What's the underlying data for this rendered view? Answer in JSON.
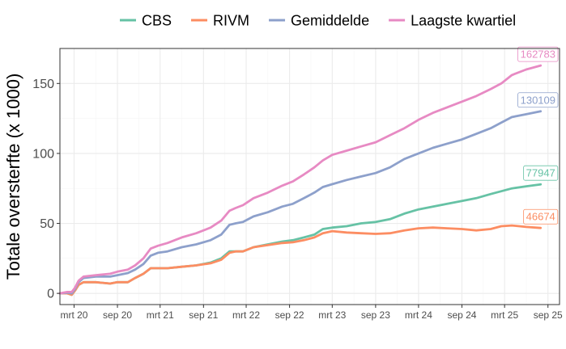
{
  "chart_data": {
    "type": "line",
    "title": "",
    "xlabel": "",
    "ylabel": "Totale oversterfte (x 1000)",
    "ylim": [
      -8,
      175
    ],
    "xlim": [
      "2020-01-01",
      "2025-10-20"
    ],
    "grid": true,
    "legend_position": "top",
    "y_ticks": [
      0,
      50,
      100,
      150
    ],
    "x_ticks": [
      {
        "date": "2020-03-01",
        "label": "mrt 20"
      },
      {
        "date": "2020-09-01",
        "label": "sep 20"
      },
      {
        "date": "2021-03-01",
        "label": "mrt 21"
      },
      {
        "date": "2021-09-01",
        "label": "sep 21"
      },
      {
        "date": "2022-03-01",
        "label": "mrt 22"
      },
      {
        "date": "2022-09-01",
        "label": "sep 22"
      },
      {
        "date": "2023-03-01",
        "label": "mrt 23"
      },
      {
        "date": "2023-09-01",
        "label": "sep 23"
      },
      {
        "date": "2024-03-01",
        "label": "mrt 24"
      },
      {
        "date": "2024-09-01",
        "label": "sep 24"
      },
      {
        "date": "2025-03-01",
        "label": "mrt 25"
      },
      {
        "date": "2025-09-01",
        "label": "sep 25"
      }
    ],
    "series": [
      {
        "name": "CBS",
        "color": "#66c2a5",
        "end_label": "77947",
        "points": [
          [
            "2020-01-01",
            0
          ],
          [
            "2020-02-01",
            0
          ],
          [
            "2020-02-20",
            -1
          ],
          [
            "2020-03-05",
            2
          ],
          [
            "2020-03-20",
            6
          ],
          [
            "2020-04-10",
            8
          ],
          [
            "2020-06-01",
            8
          ],
          [
            "2020-08-01",
            7
          ],
          [
            "2020-09-01",
            8
          ],
          [
            "2020-10-15",
            8
          ],
          [
            "2020-11-15",
            11
          ],
          [
            "2020-12-20",
            14
          ],
          [
            "2021-01-20",
            18
          ],
          [
            "2021-02-20",
            18
          ],
          [
            "2021-04-01",
            18
          ],
          [
            "2021-06-01",
            19
          ],
          [
            "2021-08-01",
            20
          ],
          [
            "2021-10-01",
            22
          ],
          [
            "2021-11-15",
            25
          ],
          [
            "2021-12-20",
            30
          ],
          [
            "2022-01-15",
            30
          ],
          [
            "2022-02-15",
            30
          ],
          [
            "2022-04-01",
            33
          ],
          [
            "2022-06-01",
            35
          ],
          [
            "2022-08-01",
            37
          ],
          [
            "2022-09-15",
            38
          ],
          [
            "2022-11-01",
            40
          ],
          [
            "2022-12-15",
            42
          ],
          [
            "2023-01-20",
            46
          ],
          [
            "2023-03-01",
            47
          ],
          [
            "2023-05-01",
            48
          ],
          [
            "2023-07-01",
            50
          ],
          [
            "2023-09-01",
            51
          ],
          [
            "2023-11-01",
            53
          ],
          [
            "2024-01-01",
            57
          ],
          [
            "2024-03-01",
            60
          ],
          [
            "2024-05-01",
            62
          ],
          [
            "2024-07-01",
            64
          ],
          [
            "2024-09-01",
            66
          ],
          [
            "2024-11-01",
            68
          ],
          [
            "2025-01-01",
            71
          ],
          [
            "2025-02-15",
            73
          ],
          [
            "2025-04-01",
            75
          ],
          [
            "2025-06-01",
            76.5
          ],
          [
            "2025-08-01",
            77.9
          ]
        ]
      },
      {
        "name": "RIVM",
        "color": "#fc8d62",
        "end_label": "46674",
        "points": [
          [
            "2020-01-01",
            0
          ],
          [
            "2020-02-01",
            0
          ],
          [
            "2020-02-20",
            -1
          ],
          [
            "2020-03-05",
            2
          ],
          [
            "2020-03-20",
            6
          ],
          [
            "2020-04-10",
            8
          ],
          [
            "2020-06-01",
            8
          ],
          [
            "2020-08-01",
            7
          ],
          [
            "2020-09-01",
            8
          ],
          [
            "2020-10-15",
            8
          ],
          [
            "2020-11-15",
            11
          ],
          [
            "2020-12-20",
            14
          ],
          [
            "2021-01-20",
            18
          ],
          [
            "2021-02-20",
            18
          ],
          [
            "2021-04-01",
            18
          ],
          [
            "2021-06-01",
            19
          ],
          [
            "2021-08-01",
            20
          ],
          [
            "2021-10-01",
            21.5
          ],
          [
            "2021-11-15",
            24
          ],
          [
            "2021-12-20",
            29
          ],
          [
            "2022-01-15",
            30
          ],
          [
            "2022-02-15",
            30
          ],
          [
            "2022-04-01",
            33
          ],
          [
            "2022-06-01",
            34.5
          ],
          [
            "2022-08-01",
            36
          ],
          [
            "2022-09-15",
            36.5
          ],
          [
            "2022-11-01",
            38
          ],
          [
            "2022-12-15",
            40
          ],
          [
            "2023-01-20",
            43
          ],
          [
            "2023-03-01",
            44.5
          ],
          [
            "2023-05-01",
            43.5
          ],
          [
            "2023-07-01",
            43
          ],
          [
            "2023-09-01",
            42.5
          ],
          [
            "2023-11-01",
            43
          ],
          [
            "2024-01-01",
            45
          ],
          [
            "2024-03-01",
            46.5
          ],
          [
            "2024-05-01",
            47
          ],
          [
            "2024-07-01",
            46.5
          ],
          [
            "2024-09-01",
            46
          ],
          [
            "2024-11-01",
            45
          ],
          [
            "2025-01-01",
            46
          ],
          [
            "2025-02-15",
            48
          ],
          [
            "2025-04-01",
            48.5
          ],
          [
            "2025-06-01",
            47.5
          ],
          [
            "2025-08-01",
            46.7
          ]
        ]
      },
      {
        "name": "Gemiddelde",
        "color": "#8da0cb",
        "end_label": "130109",
        "points": [
          [
            "2020-01-01",
            0
          ],
          [
            "2020-02-01",
            0.5
          ],
          [
            "2020-02-20",
            0
          ],
          [
            "2020-03-05",
            3
          ],
          [
            "2020-03-20",
            8
          ],
          [
            "2020-04-10",
            11
          ],
          [
            "2020-06-01",
            12
          ],
          [
            "2020-08-01",
            12
          ],
          [
            "2020-09-01",
            13
          ],
          [
            "2020-10-15",
            14.5
          ],
          [
            "2020-11-15",
            17
          ],
          [
            "2020-12-20",
            21
          ],
          [
            "2021-01-20",
            27
          ],
          [
            "2021-02-20",
            29
          ],
          [
            "2021-04-01",
            30
          ],
          [
            "2021-06-01",
            33
          ],
          [
            "2021-08-01",
            35
          ],
          [
            "2021-10-01",
            38
          ],
          [
            "2021-11-15",
            42
          ],
          [
            "2021-12-20",
            49
          ],
          [
            "2022-01-15",
            50
          ],
          [
            "2022-02-15",
            51
          ],
          [
            "2022-04-01",
            55
          ],
          [
            "2022-06-01",
            58
          ],
          [
            "2022-08-01",
            62
          ],
          [
            "2022-09-15",
            64
          ],
          [
            "2022-11-01",
            68
          ],
          [
            "2022-12-15",
            72
          ],
          [
            "2023-01-20",
            76
          ],
          [
            "2023-03-01",
            78
          ],
          [
            "2023-05-01",
            81
          ],
          [
            "2023-07-01",
            83.5
          ],
          [
            "2023-09-01",
            86
          ],
          [
            "2023-11-01",
            90
          ],
          [
            "2024-01-01",
            96
          ],
          [
            "2024-03-01",
            100
          ],
          [
            "2024-05-01",
            104
          ],
          [
            "2024-07-01",
            107
          ],
          [
            "2024-09-01",
            110
          ],
          [
            "2024-11-01",
            114
          ],
          [
            "2025-01-01",
            118
          ],
          [
            "2025-02-15",
            122
          ],
          [
            "2025-04-01",
            126
          ],
          [
            "2025-06-01",
            128
          ],
          [
            "2025-08-01",
            130.1
          ]
        ]
      },
      {
        "name": "Laagste kwartiel",
        "color": "#e78ac3",
        "end_label": "162783",
        "points": [
          [
            "2020-01-01",
            0
          ],
          [
            "2020-02-01",
            1
          ],
          [
            "2020-02-20",
            1
          ],
          [
            "2020-03-05",
            4
          ],
          [
            "2020-03-20",
            9
          ],
          [
            "2020-04-10",
            12
          ],
          [
            "2020-06-01",
            13
          ],
          [
            "2020-08-01",
            14
          ],
          [
            "2020-09-01",
            15.5
          ],
          [
            "2020-10-15",
            17
          ],
          [
            "2020-11-15",
            20
          ],
          [
            "2020-12-20",
            25
          ],
          [
            "2021-01-20",
            32
          ],
          [
            "2021-02-20",
            34
          ],
          [
            "2021-04-01",
            36
          ],
          [
            "2021-06-01",
            40
          ],
          [
            "2021-08-01",
            43
          ],
          [
            "2021-10-01",
            47
          ],
          [
            "2021-11-15",
            52
          ],
          [
            "2021-12-20",
            59
          ],
          [
            "2022-01-15",
            61
          ],
          [
            "2022-02-15",
            63
          ],
          [
            "2022-04-01",
            68
          ],
          [
            "2022-06-01",
            72
          ],
          [
            "2022-08-01",
            77
          ],
          [
            "2022-09-15",
            80
          ],
          [
            "2022-11-01",
            85
          ],
          [
            "2022-12-15",
            90
          ],
          [
            "2023-01-20",
            95
          ],
          [
            "2023-03-01",
            99
          ],
          [
            "2023-05-01",
            102
          ],
          [
            "2023-07-01",
            105
          ],
          [
            "2023-09-01",
            108
          ],
          [
            "2023-11-01",
            113
          ],
          [
            "2024-01-01",
            118
          ],
          [
            "2024-03-01",
            124
          ],
          [
            "2024-05-01",
            129
          ],
          [
            "2024-07-01",
            133
          ],
          [
            "2024-09-01",
            137
          ],
          [
            "2024-11-01",
            141
          ],
          [
            "2025-01-01",
            146
          ],
          [
            "2025-02-15",
            150
          ],
          [
            "2025-04-01",
            156
          ],
          [
            "2025-06-01",
            160
          ],
          [
            "2025-08-01",
            162.8
          ]
        ]
      }
    ]
  }
}
